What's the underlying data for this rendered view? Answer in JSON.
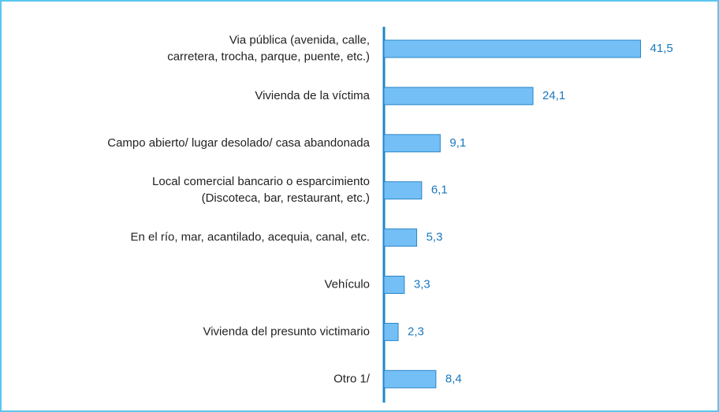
{
  "chart_data": {
    "type": "bar",
    "orientation": "horizontal",
    "categories": [
      [
        "Via pública (avenida, calle,",
        "carretera, trocha, parque, puente, etc.)"
      ],
      [
        "Vivienda de la víctima"
      ],
      [
        "Campo abierto/ lugar desolado/ casa abandonada"
      ],
      [
        "Local comercial bancario o esparcimiento",
        "(Discoteca, bar, restaurant, etc.)"
      ],
      [
        "En el río, mar, acantilado, acequia, canal, etc."
      ],
      [
        "Vehículo"
      ],
      [
        "Vivienda del presunto victimario"
      ],
      [
        "Otro 1/"
      ]
    ],
    "values": [
      41.5,
      24.1,
      9.1,
      6.1,
      5.3,
      3.3,
      2.3,
      8.4
    ],
    "value_labels": [
      "41,5",
      "24,1",
      "9,1",
      "6,1",
      "5,3",
      "3,3",
      "2,3",
      "8,4"
    ],
    "color": "#74bff6",
    "xlim": [
      0,
      45
    ]
  }
}
